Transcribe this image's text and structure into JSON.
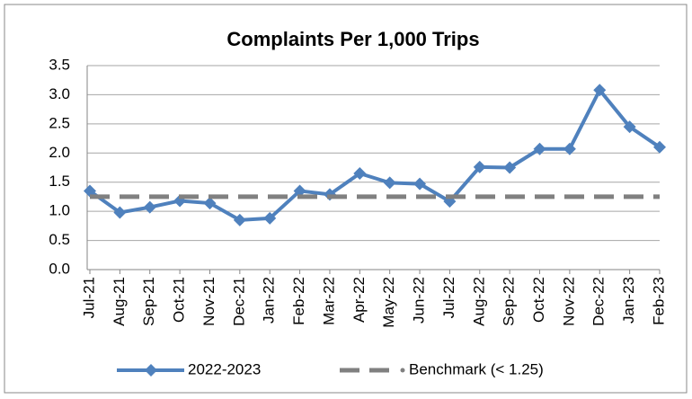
{
  "chart_data": {
    "type": "line",
    "title": "Complaints Per 1,000 Trips",
    "categories": [
      "Jul-21",
      "Aug-21",
      "Sep-21",
      "Oct-21",
      "Nov-21",
      "Dec-21",
      "Jan-22",
      "Feb-22",
      "Mar-22",
      "Apr-22",
      "May-22",
      "Jun-22",
      "Jul-22",
      "Aug-22",
      "Sep-22",
      "Oct-22",
      "Nov-22",
      "Dec-22",
      "Jan-23",
      "Feb-23"
    ],
    "series": [
      {
        "name": "2022-2023",
        "color": "#4f81bd",
        "values": [
          1.35,
          0.98,
          1.07,
          1.18,
          1.14,
          0.85,
          0.88,
          1.35,
          1.29,
          1.65,
          1.49,
          1.47,
          1.17,
          1.76,
          1.75,
          2.07,
          2.07,
          3.08,
          2.45,
          2.1
        ]
      },
      {
        "name": "Benchmark (< 1.25)",
        "color": "#808080",
        "values": [
          1.25,
          1.25,
          1.25,
          1.25,
          1.25,
          1.25,
          1.25,
          1.25,
          1.25,
          1.25,
          1.25,
          1.25,
          1.25,
          1.25,
          1.25,
          1.25,
          1.25,
          1.25,
          1.25,
          1.25
        ]
      }
    ],
    "ylim": [
      0,
      3.5
    ],
    "yticks": [
      {
        "value": 0,
        "label": "0.0"
      },
      0.5,
      {
        "value": 1,
        "label": "1.0"
      },
      1.5,
      {
        "value": 2,
        "label": "2.0"
      },
      2.5,
      {
        "value": 3,
        "label": "3.0"
      },
      3.5
    ],
    "grid": true,
    "legend": "bottom"
  }
}
